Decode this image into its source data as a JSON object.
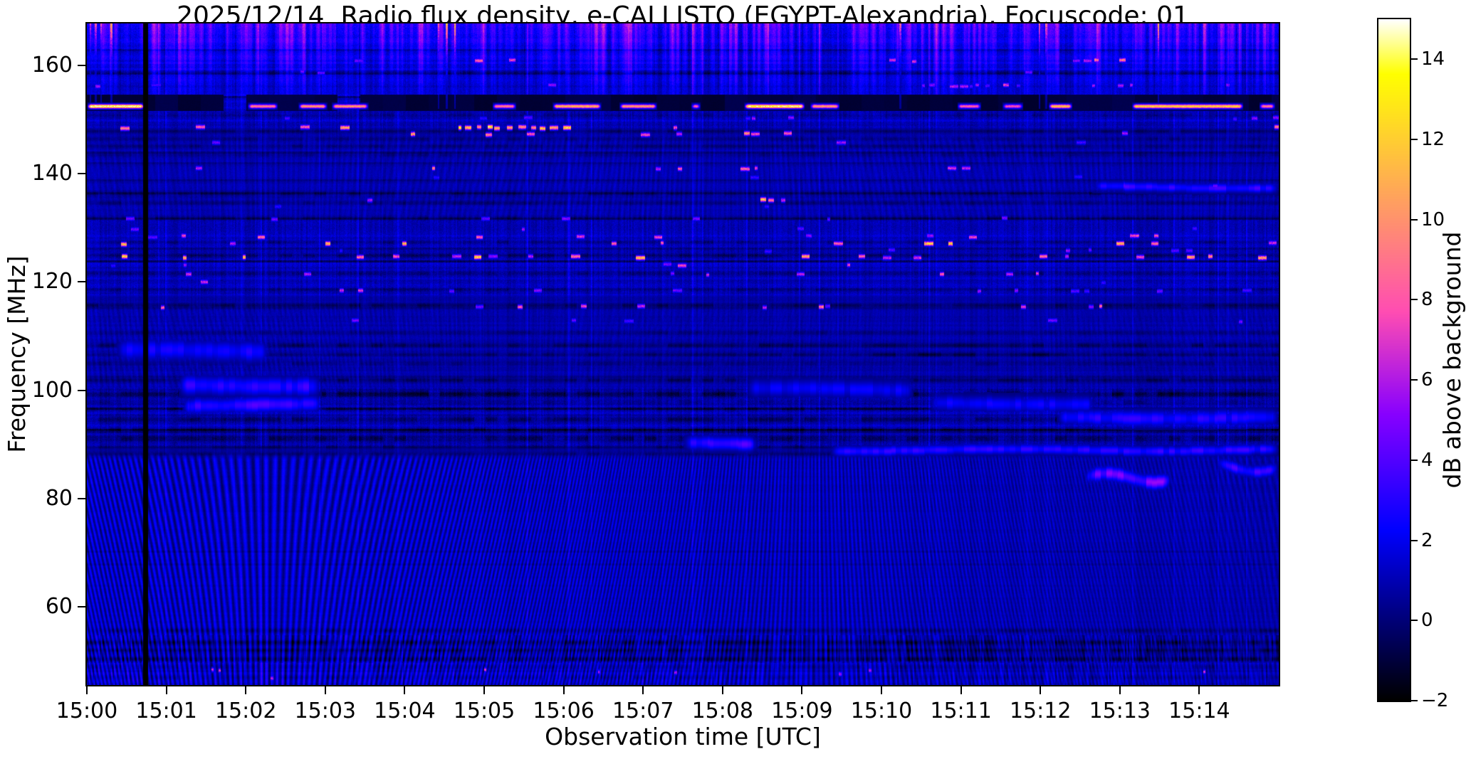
{
  "page": {
    "background": "#ffffff"
  },
  "chart_data": {
    "type": "heatmap",
    "subtype": "radio-spectrogram",
    "title": "2025/12/14  Radio flux density, e-CALLISTO (EGYPT-Alexandria), Focuscode: 01",
    "xlabel": "Observation time [UTC]",
    "ylabel": "Frequency [MHz]",
    "x_ticks": [
      "15:00",
      "15:01",
      "15:02",
      "15:03",
      "15:04",
      "15:05",
      "15:06",
      "15:07",
      "15:08",
      "15:09",
      "15:10",
      "15:11",
      "15:12",
      "15:13",
      "15:14"
    ],
    "x_range_minutes": [
      0,
      15
    ],
    "y_ticks": [
      160,
      140,
      120,
      100,
      80,
      60
    ],
    "y_range_mhz": [
      45.5,
      167.8
    ],
    "grid": false,
    "colorbar": {
      "label": "dB above background",
      "ticks": [
        14,
        12,
        10,
        8,
        6,
        4,
        2,
        0,
        -2
      ],
      "vmin": -2,
      "vmax": 15,
      "colormap": "gnuplot2"
    },
    "features": {
      "seed": 20251214,
      "vline": {
        "t": 0.715,
        "w": 0.045
      },
      "black_band": {
        "f_lo": 151.8,
        "f_hi": 154.6
      },
      "hot_line": {
        "f": 152.6,
        "segments": [
          [
            0.0,
            0.72,
            15
          ],
          [
            2.02,
            2.4,
            9.5
          ],
          [
            2.66,
            3.02,
            10.5
          ],
          [
            3.08,
            3.54,
            10.5
          ],
          [
            5.1,
            5.4,
            9.5
          ],
          [
            5.86,
            6.47,
            11.5
          ],
          [
            6.7,
            7.17,
            10.5
          ],
          [
            7.6,
            7.72,
            8.5
          ],
          [
            8.27,
            9.03,
            14.5
          ],
          [
            9.1,
            9.47,
            10.5
          ],
          [
            10.95,
            11.25,
            8.5
          ],
          [
            11.52,
            11.78,
            8
          ],
          [
            12.1,
            12.4,
            12
          ],
          [
            13.15,
            14.55,
            12.5
          ],
          [
            14.75,
            14.95,
            9.5
          ]
        ]
      },
      "dash_rows": [
        {
          "f": 161.0,
          "p": 0.035,
          "v0": 4,
          "v1": 8,
          "segs": [
            [
              4.3,
              5.45
            ],
            [
              12.15,
              13.2
            ]
          ],
          "boost": 4
        },
        {
          "f": 158.9,
          "p": 0.02,
          "v0": 3,
          "v1": 5
        },
        {
          "f": 156.4,
          "p": 0.05,
          "v0": 3,
          "v1": 6,
          "segs": [
            [
              5.3,
              6.1
            ],
            [
              10.4,
              11.9
            ]
          ],
          "boost": 2
        },
        {
          "f": 150.3,
          "p": 0.06,
          "v0": 3,
          "v1": 6,
          "segs": [
            [
              8.1,
              9.1
            ]
          ],
          "boost": 2
        },
        {
          "f": 148.6,
          "p": 0.06,
          "v0": 5,
          "v1": 11,
          "hot": [
            4.55,
            6.05
          ]
        },
        {
          "f": 147.4,
          "p": 0.05,
          "v0": 5,
          "v1": 11,
          "segs": [
            [
              4.7,
              6.05
            ]
          ],
          "boost": 3
        },
        {
          "f": 145.9,
          "p": 0.03,
          "v0": 3,
          "v1": 6
        },
        {
          "f": 143.9,
          "p": 0.025,
          "v0": 3,
          "v1": 5
        },
        {
          "f": 141.0,
          "p": 0.05,
          "v0": 5,
          "v1": 11,
          "segs": [
            [
              8.15,
              9.25
            ],
            [
              12.1,
              12.32
            ]
          ],
          "boost": 4
        },
        {
          "f": 139.5,
          "p": 0.02,
          "v0": 3,
          "v1": 5
        },
        {
          "f": 137.8,
          "p": 0.02,
          "v0": 3,
          "v1": 5
        },
        {
          "f": 135.3,
          "p": 0.04,
          "v0": 5,
          "v1": 10,
          "segs": [
            [
              8.3,
              9.05
            ]
          ],
          "boost": 3
        },
        {
          "f": 133.9,
          "p": 0.03,
          "v0": 3,
          "v1": 6
        },
        {
          "f": 131.7,
          "p": 0.05,
          "v0": 3,
          "v1": 7
        },
        {
          "f": 129.9,
          "p": 0.04,
          "v0": 3,
          "v1": 6
        },
        {
          "f": 128.5,
          "p": 0.07,
          "v0": 4,
          "v1": 9
        },
        {
          "f": 127.2,
          "p": 0.15,
          "v0": 5,
          "v1": 13
        },
        {
          "f": 125.9,
          "p": 0.06,
          "v0": 3,
          "v1": 8
        },
        {
          "f": 124.7,
          "p": 0.17,
          "v0": 5,
          "v1": 13
        },
        {
          "f": 123.2,
          "p": 0.07,
          "v0": 3,
          "v1": 8
        },
        {
          "f": 121.5,
          "p": 0.08,
          "v0": 4,
          "v1": 9
        },
        {
          "f": 120.0,
          "p": 0.05,
          "v0": 3,
          "v1": 7
        },
        {
          "f": 118.4,
          "p": 0.05,
          "v0": 3,
          "v1": 7
        },
        {
          "f": 115.5,
          "p": 0.13,
          "v0": 4,
          "v1": 10
        },
        {
          "f": 112.9,
          "p": 0.03,
          "v0": 3,
          "v1": 5
        }
      ],
      "dark_rows": [
        {
          "f": 158.9,
          "d": 1.0
        },
        {
          "f": 151.0,
          "d": 0.9
        },
        {
          "f": 147.9,
          "d": 0.9
        },
        {
          "f": 146.5,
          "d": 0.8
        },
        {
          "f": 145.2,
          "d": 0.9
        },
        {
          "f": 143.6,
          "d": 0.7
        },
        {
          "f": 136.4,
          "d": 1.1
        },
        {
          "f": 134.6,
          "d": 0.8
        },
        {
          "f": 131.9,
          "d": 0.9
        },
        {
          "f": 127.4,
          "d": 1.1
        },
        {
          "f": 124.9,
          "d": 1.2
        },
        {
          "f": 121.7,
          "d": 0.8
        },
        {
          "f": 118.6,
          "d": 0.9
        },
        {
          "f": 115.7,
          "d": 1.2
        },
        {
          "f": 110.7,
          "d": 0.7
        },
        {
          "f": 108.3,
          "d": 1.3
        },
        {
          "f": 106.6,
          "d": 1.0,
          "segs": [
            [
              9.8,
              12.1
            ]
          ]
        },
        {
          "f": 104.9,
          "d": 0.8
        },
        {
          "f": 101.9,
          "d": 1.2
        },
        {
          "f": 99.4,
          "d": 1.9,
          "sig": 3.4
        },
        {
          "f": 97.8,
          "d": 0.9
        },
        {
          "f": 96.5,
          "d": 1.1
        },
        {
          "f": 94.7,
          "d": 1.7,
          "sig": 3.0
        },
        {
          "f": 92.9,
          "d": 1.2
        },
        {
          "f": 91.1,
          "d": 1.6,
          "sig": 2.8
        },
        {
          "f": 89.6,
          "d": 1.0
        },
        {
          "f": 88.3,
          "d": 0.8
        },
        {
          "f": 55.6,
          "d": 1.0
        },
        {
          "f": 53.4,
          "d": 1.3
        },
        {
          "f": 51.9,
          "d": 1.1
        },
        {
          "f": 50.4,
          "d": 1.2
        },
        {
          "f": 48.9,
          "d": 0.8
        },
        {
          "f": 46.9,
          "d": 0.8
        }
      ],
      "blue_streaks": [
        {
          "f": 107.4,
          "t0": 0.35,
          "t1": 2.3,
          "v": 2.6,
          "sig": 1.2
        },
        {
          "f": 100.9,
          "t0": 1.15,
          "t1": 2.95,
          "v": 3.3,
          "sig": 1.1
        },
        {
          "f": 97.3,
          "t0": 1.2,
          "t1": 2.95,
          "v": 3.5,
          "sig": 0.9
        },
        {
          "f": 97.6,
          "t0": 10.6,
          "t1": 12.7,
          "v": 2.4,
          "sig": 0.9
        },
        {
          "f": 95.0,
          "t0": 12.2,
          "t1": 15,
          "v": 2.9,
          "sig": 0.9
        },
        {
          "f": 100.3,
          "t0": 8.3,
          "t1": 10.4,
          "v": 2.2,
          "sig": 1.0
        },
        {
          "f": 90.2,
          "t0": 7.5,
          "t1": 8.45,
          "v": 3.6,
          "sig": 0.8
        },
        {
          "f": 89.0,
          "t0": 9.35,
          "t1": 15,
          "v": 3.1,
          "sig": 0.6
        },
        {
          "f": 137.6,
          "t0": 12.65,
          "t1": 15,
          "v": 3.3,
          "sig": 0.55
        },
        {
          "f": 84.0,
          "t0": 12.55,
          "t1": 13.65,
          "v": 4.6,
          "sig": 0.8,
          "wavy": 1
        },
        {
          "f": 86.0,
          "t0": 14.2,
          "t1": 15,
          "v": 3.4,
          "sig": 0.7,
          "wavy": 1
        }
      ],
      "ripple_zones": [
        {
          "f_lo": 44.0,
          "f_hi": 88.5,
          "amp": 1.7
        },
        {
          "f_lo": 101.5,
          "f_hi": 116.5,
          "amp": 0.6
        },
        {
          "f_lo": 132.5,
          "f_hi": 147.5,
          "amp": 0.38
        }
      ],
      "top_band": {
        "f_start": 150,
        "amp": 3.3,
        "pink_times": [
          0.04,
          0.1,
          0.17,
          0.3,
          4.42,
          4.52,
          4.62,
          10.22,
          11.98,
          12.06,
          13.48
        ],
        "pink_amp": 9.5
      },
      "stripe_band": {
        "f_max": 49.6
      },
      "tick_band": {
        "f_lo": 49.9,
        "f_hi": 54.7
      },
      "magenta_dots": {
        "f_lo": 46.2,
        "f_hi": 48.6,
        "count": 10,
        "v_lo": 5.5,
        "v_hi": 7.5
      }
    }
  }
}
